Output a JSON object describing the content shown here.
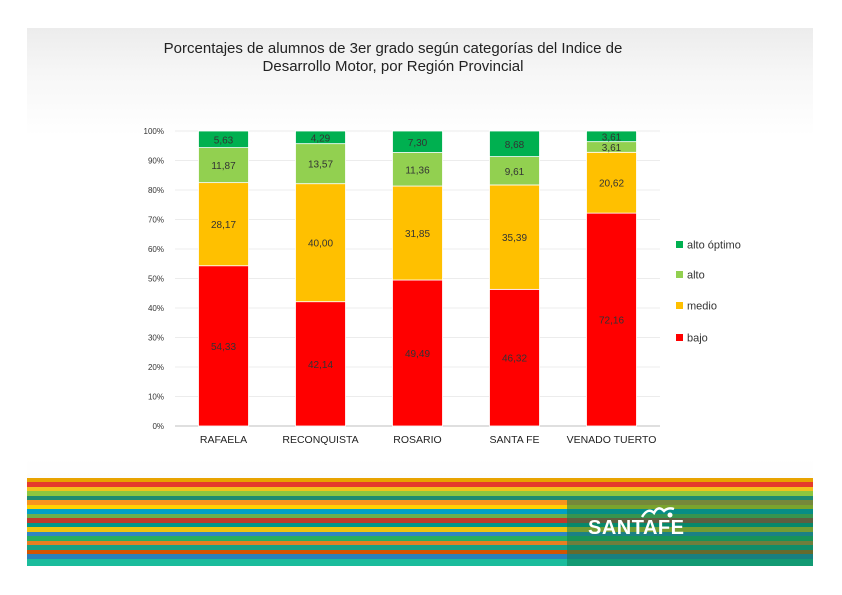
{
  "title_line1": "Porcentajes de alumnos de 3er grado según categorías del Indice de",
  "title_line2": "Desarrollo Motor, por Región Provincial",
  "logo_text": "SANTAFE",
  "chart_data": {
    "type": "bar",
    "stacked": true,
    "title": "Porcentajes de alumnos de 3er grado según categorías del Indice de Desarrollo Motor, por Región Provincial",
    "categories": [
      "RAFAELA",
      "RECONQUISTA",
      "ROSARIO",
      "SANTA FE",
      "VENADO TUERTO"
    ],
    "series": [
      {
        "name": "bajo",
        "color": "#ff0000",
        "values": [
          54.33,
          42.14,
          49.49,
          46.32,
          72.16
        ],
        "labels": [
          "54,33",
          "42,14",
          "49,49",
          "46,32",
          "72,16"
        ]
      },
      {
        "name": "medio",
        "color": "#ffc000",
        "values": [
          28.17,
          40.0,
          31.85,
          35.39,
          20.62
        ],
        "labels": [
          "28,17",
          "40,00",
          "31,85",
          "35,39",
          "20,62"
        ]
      },
      {
        "name": "alto",
        "color": "#92d050",
        "values": [
          11.87,
          13.57,
          11.36,
          9.61,
          3.61
        ],
        "labels": [
          "11,87",
          "13,57",
          "11,36",
          "9,61",
          "3,61"
        ]
      },
      {
        "name": "alto óptimo",
        "color": "#00b050",
        "values": [
          5.63,
          4.29,
          7.3,
          8.68,
          3.61
        ],
        "labels": [
          "5,63",
          "4,29",
          "7,30",
          "8,68",
          "3,61"
        ]
      }
    ],
    "yticks": [
      "0%",
      "10%",
      "20%",
      "30%",
      "40%",
      "50%",
      "60%",
      "70%",
      "80%",
      "90%",
      "100%"
    ],
    "ylim": [
      0,
      100
    ],
    "legend_position": "right",
    "legend_order": [
      "alto óptimo",
      "alto",
      "medio",
      "bajo"
    ],
    "xlabel": "",
    "ylabel": ""
  }
}
